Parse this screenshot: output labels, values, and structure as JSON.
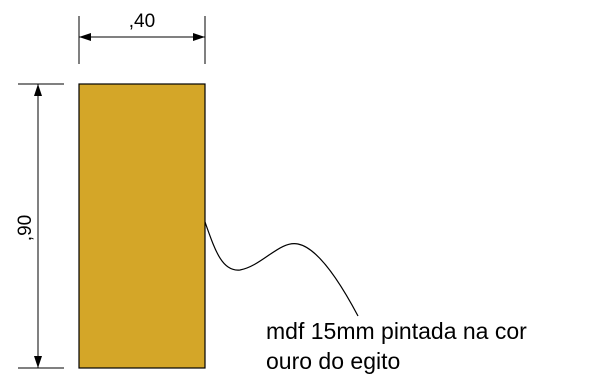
{
  "drawing": {
    "width_dimension": ",40",
    "height_dimension": ",90",
    "panel_color": "#D4A628",
    "stroke_color": "#000000"
  },
  "note": {
    "line1": "mdf 15mm pintada na cor",
    "line2": "ouro do egito"
  }
}
